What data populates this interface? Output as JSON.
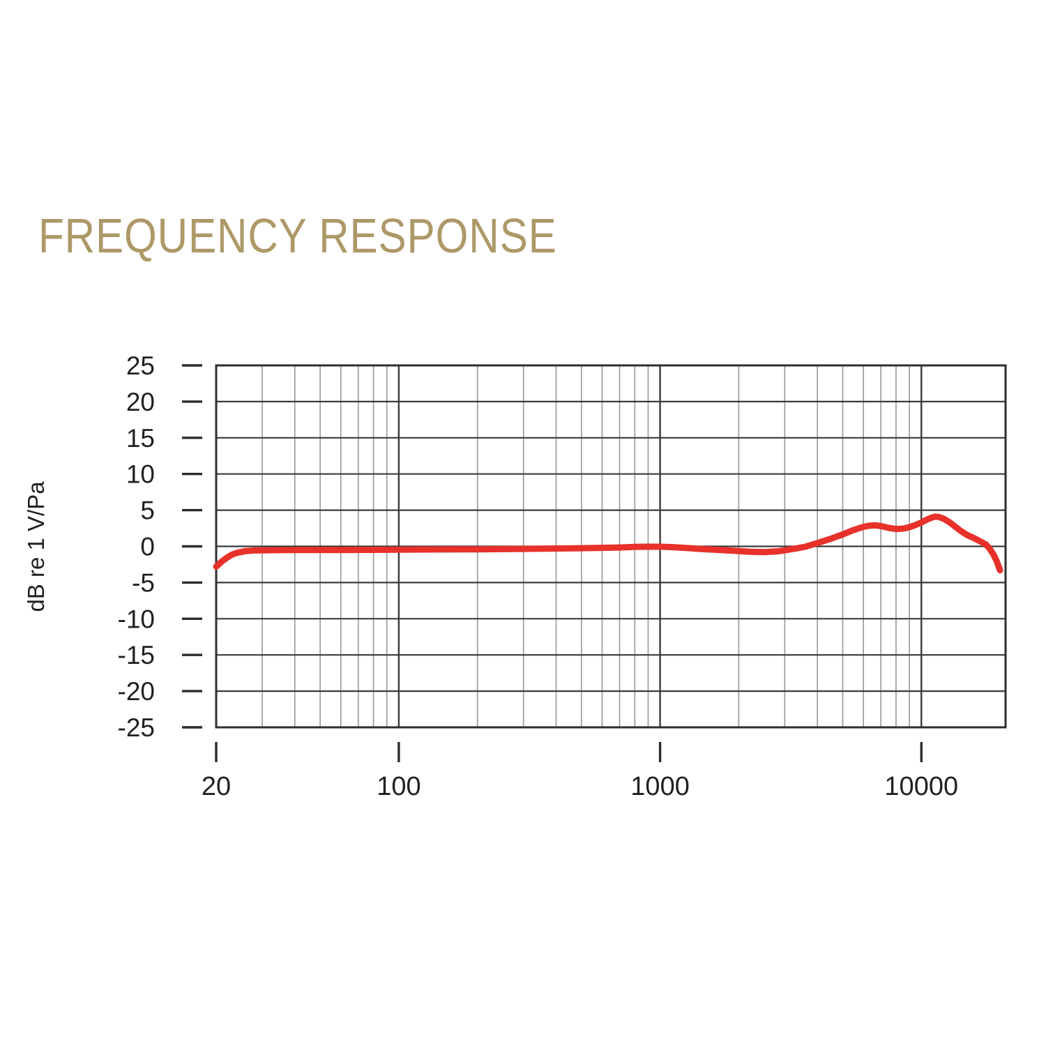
{
  "page": {
    "title": "FREQUENCY RESPONSE",
    "title_color": "#ad9968",
    "background": "#ffffff",
    "text_color": "#231f20"
  },
  "chart_data": {
    "type": "line",
    "title": "FREQUENCY RESPONSE",
    "xlabel": "",
    "ylabel": "dB re 1 V/Pa",
    "legend_position": "none",
    "x_axis": {
      "scale": "log",
      "min": 20,
      "max": 21000,
      "major_ticks": [
        20,
        100,
        1000,
        10000
      ],
      "tick_labels": [
        "20",
        "100",
        "1000",
        "10000"
      ],
      "minor_gridlines": [
        30,
        40,
        50,
        60,
        70,
        80,
        90,
        200,
        300,
        400,
        500,
        600,
        700,
        800,
        900,
        2000,
        3000,
        4000,
        5000,
        6000,
        7000,
        8000,
        9000
      ]
    },
    "y_axis": {
      "min": -25,
      "max": 25,
      "step": 5,
      "ticks": [
        25,
        20,
        15,
        10,
        5,
        0,
        -5,
        -10,
        -15,
        -20,
        -25
      ],
      "tick_labels": [
        "25",
        "20",
        "15",
        "10",
        "5",
        "0",
        "-5",
        "-10",
        "-15",
        "-20",
        "-25"
      ],
      "unit": "dB"
    },
    "grid": {
      "horizontal_color": "#3a3a3c",
      "vertical_minor_color": "#97979a",
      "vertical_major_color": "#3a3a3c",
      "border_color": "#2e2e30",
      "tick_color": "#2b2b2d",
      "label_color": "#231f20"
    },
    "series": [
      {
        "name": "frequency response",
        "color": "#e7312a",
        "points": [
          [
            20,
            -2.8
          ],
          [
            21,
            -2.1
          ],
          [
            22,
            -1.55
          ],
          [
            23,
            -1.15
          ],
          [
            24,
            -0.9
          ],
          [
            26,
            -0.65
          ],
          [
            28,
            -0.57
          ],
          [
            30,
            -0.55
          ],
          [
            35,
            -0.52
          ],
          [
            40,
            -0.5
          ],
          [
            50,
            -0.5
          ],
          [
            60,
            -0.5
          ],
          [
            80,
            -0.48
          ],
          [
            100,
            -0.45
          ],
          [
            150,
            -0.42
          ],
          [
            200,
            -0.4
          ],
          [
            300,
            -0.35
          ],
          [
            400,
            -0.3
          ],
          [
            500,
            -0.25
          ],
          [
            600,
            -0.2
          ],
          [
            700,
            -0.15
          ],
          [
            800,
            -0.08
          ],
          [
            900,
            -0.05
          ],
          [
            1000,
            -0.05
          ],
          [
            1100,
            -0.1
          ],
          [
            1300,
            -0.25
          ],
          [
            1500,
            -0.4
          ],
          [
            1800,
            -0.55
          ],
          [
            2000,
            -0.65
          ],
          [
            2200,
            -0.75
          ],
          [
            2500,
            -0.8
          ],
          [
            2800,
            -0.7
          ],
          [
            3000,
            -0.55
          ],
          [
            3300,
            -0.3
          ],
          [
            3600,
            -0.05
          ],
          [
            4000,
            0.45
          ],
          [
            4500,
            1.05
          ],
          [
            5000,
            1.65
          ],
          [
            5500,
            2.25
          ],
          [
            6000,
            2.7
          ],
          [
            6300,
            2.85
          ],
          [
            6700,
            2.9
          ],
          [
            7000,
            2.8
          ],
          [
            7500,
            2.55
          ],
          [
            8000,
            2.4
          ],
          [
            8500,
            2.45
          ],
          [
            9000,
            2.65
          ],
          [
            9500,
            2.95
          ],
          [
            10000,
            3.3
          ],
          [
            10500,
            3.7
          ],
          [
            11000,
            4.0
          ],
          [
            11300,
            4.1
          ],
          [
            11700,
            4.05
          ],
          [
            12200,
            3.8
          ],
          [
            12800,
            3.35
          ],
          [
            13500,
            2.7
          ],
          [
            14200,
            2.1
          ],
          [
            15000,
            1.55
          ],
          [
            16000,
            1.1
          ],
          [
            17000,
            0.6
          ],
          [
            17600,
            0.3
          ],
          [
            18200,
            -0.25
          ],
          [
            18800,
            -1.0
          ],
          [
            19400,
            -2.0
          ],
          [
            20000,
            -3.3
          ]
        ]
      }
    ]
  }
}
